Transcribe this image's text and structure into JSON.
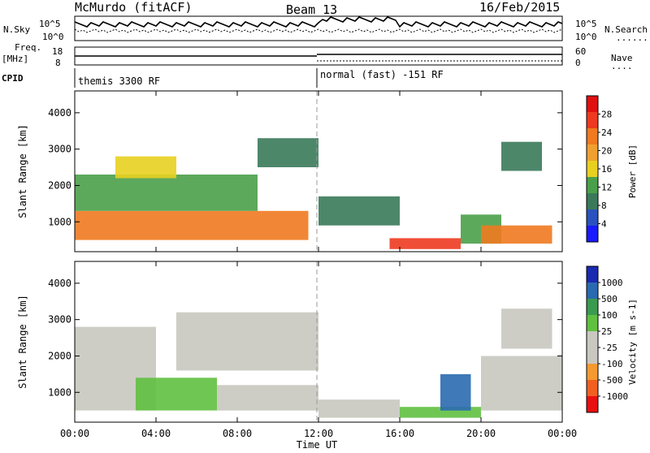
{
  "header": {
    "station": "McMurdo (fitACF)",
    "beam": "Beam 13",
    "date": "16/Feb/2015"
  },
  "top_panels": {
    "nsky_label": "N.Sky",
    "nsky_ticks": [
      "10^5",
      "10^0"
    ],
    "nsearch_label": "N.Search",
    "nsearch_ticks": [
      "10^5",
      "10^0"
    ],
    "freq_label": "Freq.",
    "freq_unit": "[MHz]",
    "freq_ticks": [
      "18",
      "8"
    ],
    "nave_label": "Nave",
    "nave_ticks": [
      "60",
      "0"
    ],
    "cpid_label": "CPID",
    "cpid_modes": [
      "themis 3300 RF",
      "normal (fast) -151 RF"
    ]
  },
  "colors": {
    "power": [
      "#1a1aff",
      "#2a52be",
      "#3a7a5a",
      "#4aa04a",
      "#e8d020",
      "#f0a030",
      "#f07a20",
      "#ee3a20",
      "#e01010"
    ],
    "velocity": [
      "#e81010",
      "#f06020",
      "#f59a30",
      "#c8c8c0",
      "#c8c8c0",
      "#60c040",
      "#3a9a50",
      "#2a6ab0",
      "#1a2ab0"
    ]
  },
  "chart_data": [
    {
      "type": "heatmap",
      "title": "",
      "xlabel": "Time UT",
      "ylabel": "Slant Range [km]",
      "x_ticks": [
        "00:00",
        "04:00",
        "08:00",
        "12:00",
        "16:00",
        "20:00",
        "00:00"
      ],
      "xlim": [
        0,
        24
      ],
      "y_ticks": [
        "4000",
        "3000",
        "2000",
        "1000"
      ],
      "ylim": [
        180,
        4600
      ],
      "colorbar": {
        "label": "Power [dB]",
        "ticks": [
          "28",
          "24",
          "20",
          "16",
          "12",
          "8",
          "4"
        ],
        "range": [
          0,
          32
        ]
      },
      "regions": [
        {
          "t": [
            0,
            11.5
          ],
          "r": [
            500,
            1300
          ],
          "v": 24
        },
        {
          "t": [
            0,
            9
          ],
          "r": [
            1300,
            2300
          ],
          "v": 14
        },
        {
          "t": [
            2,
            5
          ],
          "r": [
            2200,
            2800
          ],
          "v": 16
        },
        {
          "t": [
            9,
            12
          ],
          "r": [
            2500,
            3300
          ],
          "v": 10
        },
        {
          "t": [
            12,
            16
          ],
          "r": [
            900,
            1700
          ],
          "v": 8
        },
        {
          "t": [
            15.5,
            19
          ],
          "r": [
            250,
            550
          ],
          "v": 26
        },
        {
          "t": [
            19,
            21
          ],
          "r": [
            400,
            1200
          ],
          "v": 12
        },
        {
          "t": [
            20,
            23.5
          ],
          "r": [
            400,
            900
          ],
          "v": 22
        },
        {
          "t": [
            21,
            23
          ],
          "r": [
            2400,
            3200
          ],
          "v": 9
        }
      ]
    },
    {
      "type": "heatmap",
      "title": "",
      "xlabel": "Time UT",
      "ylabel": "Slant Range [km]",
      "x_ticks": [
        "00:00",
        "04:00",
        "08:00",
        "12:00",
        "16:00",
        "20:00",
        "00:00"
      ],
      "xlim": [
        0,
        24
      ],
      "y_ticks": [
        "4000",
        "3000",
        "2000",
        "1000"
      ],
      "ylim": [
        180,
        4600
      ],
      "colorbar": {
        "label": "Velocity [m s-1]",
        "ticks": [
          "1000",
          "500",
          "100",
          "25",
          "-25",
          "-100",
          "-500",
          "-1000"
        ],
        "range": [
          -1000,
          1000
        ]
      },
      "regions": [
        {
          "t": [
            0,
            4
          ],
          "r": [
            500,
            2800
          ],
          "v": -250
        },
        {
          "t": [
            3,
            7
          ],
          "r": [
            500,
            1400
          ],
          "v": 200
        },
        {
          "t": [
            7,
            12
          ],
          "r": [
            500,
            1200
          ],
          "v": -250
        },
        {
          "t": [
            5,
            12
          ],
          "r": [
            1600,
            3200
          ],
          "v": 0
        },
        {
          "t": [
            12,
            16
          ],
          "r": [
            300,
            800
          ],
          "v": 50
        },
        {
          "t": [
            16,
            20
          ],
          "r": [
            300,
            600
          ],
          "v": 200
        },
        {
          "t": [
            18,
            19.5
          ],
          "r": [
            500,
            1500
          ],
          "v": 700
        },
        {
          "t": [
            20,
            24
          ],
          "r": [
            500,
            2000
          ],
          "v": -300
        },
        {
          "t": [
            21,
            23.5
          ],
          "r": [
            2200,
            3300
          ],
          "v": 0
        }
      ]
    }
  ]
}
